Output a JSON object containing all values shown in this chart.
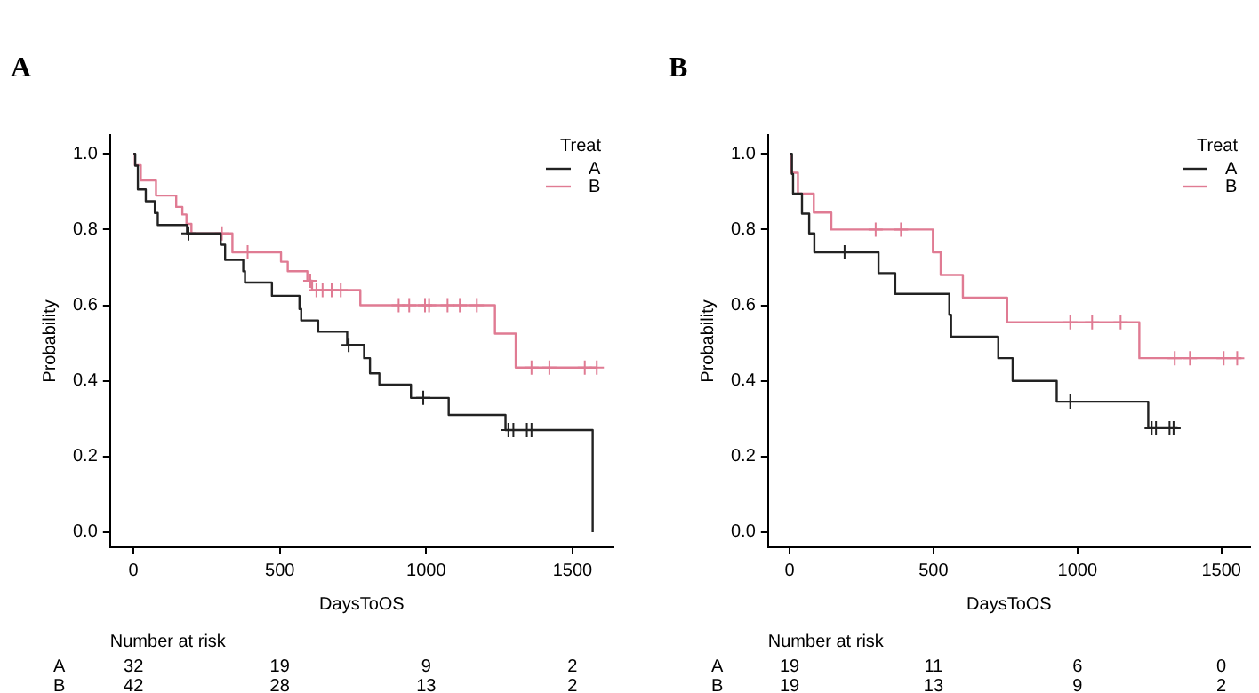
{
  "chart_data": [
    {
      "type": "step",
      "title": "A",
      "xlabel": "DaysToOS",
      "ylabel": "Probability",
      "legend_title": "Treat",
      "legend": "top right",
      "xlim": [
        -80,
        1640
      ],
      "xticks": [
        0,
        500,
        1000,
        1500
      ],
      "ylim": [
        -0.04,
        1.05
      ],
      "yticks": [
        {
          "value": 0,
          "label": "0.0"
        },
        {
          "value": 0.2,
          "label": "0.2"
        },
        {
          "value": 0.4,
          "label": "0.4"
        },
        {
          "value": 0.6,
          "label": "0.6"
        },
        {
          "value": 0.8,
          "label": "0.8"
        },
        {
          "value": 1,
          "label": "1.0"
        }
      ],
      "series": [
        {
          "name": "A",
          "color": "#222222",
          "x": [
            0,
            6,
            15,
            42,
            73,
            83,
            183,
            298,
            313,
            375,
            381,
            473,
            567,
            573,
            631,
            730,
            788,
            808,
            840,
            948,
            1077,
            1271,
            1569
          ],
          "values": [
            1.0,
            0.969,
            0.906,
            0.875,
            0.844,
            0.812,
            0.79,
            0.76,
            0.72,
            0.69,
            0.66,
            0.625,
            0.59,
            0.56,
            0.53,
            0.495,
            0.46,
            0.42,
            0.39,
            0.355,
            0.31,
            0.27,
            0.0
          ]
        },
        {
          "name": "B",
          "color": "#e07b93",
          "x": [
            0,
            5,
            25,
            77,
            146,
            167,
            181,
            198,
            338,
            504,
            527,
            594,
            610,
            775,
            1235,
            1306,
            1583
          ],
          "values": [
            1.0,
            0.97,
            0.93,
            0.89,
            0.86,
            0.84,
            0.815,
            0.79,
            0.74,
            0.715,
            0.69,
            0.665,
            0.64,
            0.6,
            0.525,
            0.435,
            0.435
          ]
        },
        {
          "type": "scatter",
          "marker": "cross",
          "color": "#222222",
          "x": [
            188,
            735,
            990,
            1281,
            1298,
            1344,
            1360
          ],
          "values": [
            0.79,
            0.495,
            0.355,
            0.27,
            0.27,
            0.27,
            0.27
          ]
        },
        {
          "type": "scatter",
          "marker": "cross",
          "color": "#e07b93",
          "x": [
            302,
            390,
            604,
            625,
            646,
            677,
            708,
            906,
            942,
            996,
            1010,
            1073,
            1115,
            1173,
            1360,
            1421,
            1542,
            1583
          ],
          "values": [
            0.79,
            0.74,
            0.665,
            0.64,
            0.64,
            0.64,
            0.64,
            0.6,
            0.6,
            0.6,
            0.6,
            0.6,
            0.6,
            0.6,
            0.435,
            0.435,
            0.435,
            0.435
          ]
        }
      ],
      "annotations": [
        "Number at risk",
        "A",
        "32",
        "19",
        "9",
        "2",
        "B",
        "42",
        "28",
        "13",
        "2"
      ]
    },
    {
      "type": "step",
      "title": "B",
      "xlabel": "DaysToOS",
      "ylabel": "Probability",
      "legend_title": "Treat",
      "legend": "top right",
      "xlim": [
        -75,
        1600
      ],
      "xticks": [
        0,
        500,
        1000,
        1500
      ],
      "ylim": [
        -0.04,
        1.05
      ],
      "yticks": [
        {
          "value": 0,
          "label": "0.0"
        },
        {
          "value": 0.2,
          "label": "0.2"
        },
        {
          "value": 0.4,
          "label": "0.4"
        },
        {
          "value": 0.6,
          "label": "0.6"
        },
        {
          "value": 0.8,
          "label": "0.8"
        },
        {
          "value": 1,
          "label": "1.0"
        }
      ],
      "series": [
        {
          "name": "A",
          "color": "#222222",
          "x": [
            0,
            8,
            12,
            43,
            68,
            86,
            309,
            367,
            555,
            561,
            725,
            775,
            928,
            1246,
            1348
          ],
          "values": [
            1.0,
            0.947,
            0.895,
            0.842,
            0.79,
            0.74,
            0.685,
            0.63,
            0.575,
            0.517,
            0.46,
            0.4,
            0.345,
            0.275,
            0.275
          ]
        },
        {
          "name": "B",
          "color": "#e07b93",
          "x": [
            0,
            6,
            29,
            84,
            145,
            498,
            525,
            602,
            756,
            1215,
            1570
          ],
          "values": [
            1.0,
            0.95,
            0.895,
            0.845,
            0.8,
            0.74,
            0.68,
            0.62,
            0.555,
            0.46,
            0.46
          ]
        },
        {
          "type": "scatter",
          "marker": "cross",
          "color": "#222222",
          "x": [
            191,
            975,
            1258,
            1273,
            1320,
            1334
          ],
          "values": [
            0.74,
            0.345,
            0.275,
            0.275,
            0.275,
            0.275
          ]
        },
        {
          "type": "scatter",
          "marker": "cross",
          "color": "#e07b93",
          "x": [
            299,
            387,
            975,
            1051,
            1150,
            1338,
            1391,
            1508,
            1555
          ],
          "values": [
            0.8,
            0.8,
            0.555,
            0.555,
            0.555,
            0.46,
            0.46,
            0.46,
            0.46
          ]
        }
      ],
      "annotations": [
        "Number at risk",
        "A",
        "19",
        "11",
        "6",
        "0",
        "B",
        "19",
        "13",
        "9",
        "2"
      ]
    }
  ]
}
